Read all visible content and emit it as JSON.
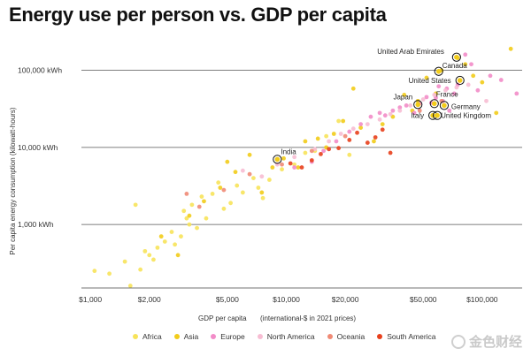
{
  "chart_data": {
    "type": "scatter",
    "title": "Energy use per person vs. GDP per capita",
    "xlabel": "GDP per capita",
    "xlabel_note": "(international-$ in 2021 prices)",
    "ylabel": "Per capita energy consumption (kilowatt-hours)",
    "x_scale": "log",
    "y_scale": "log",
    "xlim": [
      900,
      160000
    ],
    "ylim": [
      150,
      300000
    ],
    "grid": "horizontal",
    "legend_placement": "bottom",
    "x_ticks": [
      {
        "value": 1000,
        "label": "$1,000"
      },
      {
        "value": 2000,
        "label": "$2,000"
      },
      {
        "value": 5000,
        "label": "$5,000"
      },
      {
        "value": 10000,
        "label": "$10,000"
      },
      {
        "value": 20000,
        "label": "$20,000"
      },
      {
        "value": 50000,
        "label": "$50,000"
      },
      {
        "value": 100000,
        "label": "$100,000"
      }
    ],
    "y_ticks": [
      {
        "value": 1000,
        "label": "1,000 kWh"
      },
      {
        "value": 10000,
        "label": "10,000 kWh"
      },
      {
        "value": 100000,
        "label": "100,000 kWh"
      }
    ],
    "series": [
      {
        "name": "Africa",
        "color": "#f7e35a",
        "points": [
          [
            1050,
            250
          ],
          [
            1250,
            230
          ],
          [
            1500,
            330
          ],
          [
            1600,
            160
          ],
          [
            1700,
            1800
          ],
          [
            1800,
            260
          ],
          [
            1900,
            450
          ],
          [
            2000,
            400
          ],
          [
            2100,
            350
          ],
          [
            2200,
            500
          ],
          [
            2400,
            600
          ],
          [
            2600,
            800
          ],
          [
            2700,
            550
          ],
          [
            2900,
            700
          ],
          [
            3000,
            1500
          ],
          [
            3100,
            1200
          ],
          [
            3200,
            1000
          ],
          [
            3300,
            1800
          ],
          [
            3500,
            900
          ],
          [
            3700,
            2300
          ],
          [
            3900,
            1200
          ],
          [
            4200,
            2500
          ],
          [
            4500,
            3500
          ],
          [
            4800,
            1600
          ],
          [
            5200,
            1900
          ],
          [
            5600,
            3200
          ],
          [
            6000,
            2600
          ],
          [
            6800,
            4000
          ],
          [
            7200,
            3000
          ],
          [
            7600,
            2200
          ],
          [
            8200,
            3800
          ],
          [
            9500,
            5200
          ],
          [
            11000,
            6000
          ],
          [
            12500,
            8500
          ],
          [
            14000,
            9000
          ],
          [
            16000,
            14000
          ],
          [
            18500,
            22000
          ],
          [
            21000,
            8000
          ]
        ]
      },
      {
        "name": "Asia",
        "color": "#f2cc1a",
        "points": [
          [
            2300,
            700
          ],
          [
            2800,
            400
          ],
          [
            3200,
            1300
          ],
          [
            3800,
            2000
          ],
          [
            4600,
            3000
          ],
          [
            5000,
            6500
          ],
          [
            5500,
            4800
          ],
          [
            6500,
            8000
          ],
          [
            7500,
            2600
          ],
          [
            8500,
            5500
          ],
          [
            9700,
            7200
          ],
          [
            11500,
            5500
          ],
          [
            12500,
            12000
          ],
          [
            14500,
            13000
          ],
          [
            16000,
            10000
          ],
          [
            17500,
            15000
          ],
          [
            19500,
            22000
          ],
          [
            22000,
            58000
          ],
          [
            24000,
            18000
          ],
          [
            28000,
            12000
          ],
          [
            31000,
            20000
          ],
          [
            35000,
            25000
          ],
          [
            40000,
            48000
          ],
          [
            44000,
            30000
          ],
          [
            47000,
            40000
          ],
          [
            52000,
            80000
          ],
          [
            58000,
            50000
          ],
          [
            62000,
            100000
          ],
          [
            75000,
            145000
          ],
          [
            82000,
            120000
          ],
          [
            90000,
            85000
          ],
          [
            100000,
            70000
          ],
          [
            118000,
            28000
          ],
          [
            140000,
            190000
          ]
        ]
      },
      {
        "name": "Europe",
        "color": "#f28cc8",
        "points": [
          [
            11000,
            5500
          ],
          [
            13500,
            6500
          ],
          [
            15500,
            9000
          ],
          [
            18000,
            12000
          ],
          [
            21000,
            16000
          ],
          [
            24000,
            20000
          ],
          [
            27000,
            25000
          ],
          [
            30000,
            28000
          ],
          [
            32000,
            26000
          ],
          [
            35000,
            30000
          ],
          [
            38000,
            33000
          ],
          [
            41000,
            35000
          ],
          [
            45000,
            28000
          ],
          [
            48000,
            37000
          ],
          [
            52000,
            45000
          ],
          [
            55000,
            38000
          ],
          [
            58000,
            44000
          ],
          [
            60000,
            62000
          ],
          [
            63000,
            40000
          ],
          [
            66000,
            58000
          ],
          [
            68000,
            30000
          ],
          [
            72000,
            50000
          ],
          [
            75000,
            65000
          ],
          [
            82000,
            160000
          ],
          [
            88000,
            120000
          ],
          [
            95000,
            55000
          ],
          [
            110000,
            85000
          ],
          [
            125000,
            75000
          ],
          [
            150000,
            50000
          ]
        ]
      },
      {
        "name": "North America",
        "color": "#f7bdd3",
        "points": [
          [
            6000,
            5000
          ],
          [
            7500,
            4200
          ],
          [
            9000,
            6000
          ],
          [
            11000,
            7500
          ],
          [
            14000,
            9500
          ],
          [
            16500,
            12000
          ],
          [
            19000,
            15000
          ],
          [
            22000,
            17500
          ],
          [
            26000,
            20000
          ],
          [
            30000,
            23000
          ],
          [
            34000,
            27000
          ],
          [
            38000,
            30000
          ],
          [
            43000,
            35000
          ],
          [
            50000,
            42000
          ],
          [
            57000,
            48000
          ],
          [
            65000,
            55000
          ],
          [
            74000,
            60000
          ],
          [
            85000,
            65000
          ],
          [
            105000,
            40000
          ]
        ]
      },
      {
        "name": "Oceania",
        "color": "#f08a75",
        "points": [
          [
            3100,
            2500
          ],
          [
            3600,
            1700
          ],
          [
            4800,
            2800
          ],
          [
            6500,
            4500
          ],
          [
            9500,
            6000
          ],
          [
            13500,
            9000
          ],
          [
            20000,
            14000
          ],
          [
            48000,
            30000
          ],
          [
            62000,
            40000
          ]
        ]
      },
      {
        "name": "South America",
        "color": "#e8401c",
        "points": [
          [
            10500,
            6200
          ],
          [
            12000,
            5500
          ],
          [
            13500,
            6800
          ],
          [
            15000,
            8200
          ],
          [
            16500,
            9500
          ],
          [
            18500,
            9800
          ],
          [
            21000,
            12500
          ],
          [
            23000,
            15500
          ],
          [
            26000,
            11500
          ],
          [
            28500,
            13500
          ],
          [
            31000,
            17000
          ],
          [
            34000,
            8500
          ]
        ]
      }
    ],
    "annotations": [
      {
        "label": "United Arab Emirates",
        "x": 74000,
        "y": 148000,
        "text_anchor": "end",
        "dx": -14,
        "dy": -4
      },
      {
        "label": "Canada",
        "x": 60000,
        "y": 97000,
        "text_anchor": "start",
        "dx": 4,
        "dy": -4
      },
      {
        "label": "United States",
        "x": 77000,
        "y": 74000,
        "text_anchor": "end",
        "dx": -10,
        "dy": 3
      },
      {
        "label": "Japan",
        "x": 47000,
        "y": 36000,
        "text_anchor": "end",
        "dx": -6,
        "dy": -6
      },
      {
        "label": "France",
        "x": 57000,
        "y": 37000,
        "text_anchor": "start",
        "dx": 2,
        "dy": -8
      },
      {
        "label": "Germany",
        "x": 64000,
        "y": 35000,
        "text_anchor": "start",
        "dx": 8,
        "dy": 4
      },
      {
        "label": "Italy",
        "x": 56000,
        "y": 26000,
        "text_anchor": "end",
        "dx": -10,
        "dy": 3
      },
      {
        "label": "United Kingdom",
        "x": 59000,
        "y": 26000,
        "text_anchor": "start",
        "dx": 4,
        "dy": 3
      },
      {
        "label": "India",
        "x": 9000,
        "y": 7000,
        "text_anchor": "start",
        "dx": 4,
        "dy": -6
      }
    ]
  },
  "watermark": {
    "text": "金色财经"
  }
}
